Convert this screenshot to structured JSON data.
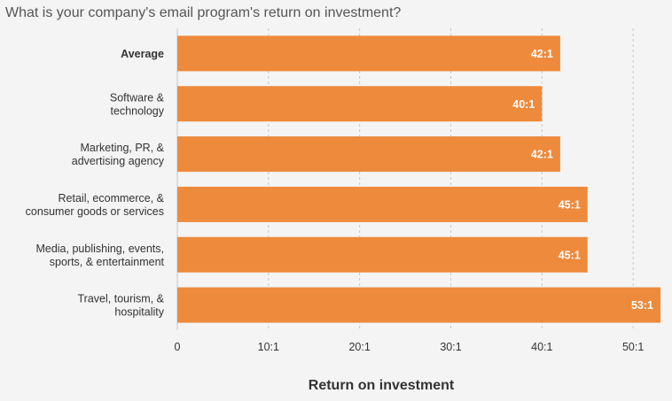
{
  "chart_data": {
    "type": "bar",
    "orientation": "horizontal",
    "title": "What is your company's email program's return on investment?",
    "xlabel": "Return on investment",
    "ylabel": "",
    "categories": [
      [
        "Average"
      ],
      [
        "Software &",
        "technology"
      ],
      [
        "Marketing, PR, &",
        "advertising agency"
      ],
      [
        "Retail, ecommerce, &",
        "consumer goods or services"
      ],
      [
        "Media, publishing, events,",
        "sports, & entertainment"
      ],
      [
        "Travel, tourism, &",
        "hospitality"
      ]
    ],
    "bold_category_index": 0,
    "values": [
      42,
      40,
      42,
      45,
      45,
      53
    ],
    "data_labels": [
      "42:1",
      "40:1",
      "42:1",
      "45:1",
      "45:1",
      "53:1"
    ],
    "xlim": [
      0,
      53
    ],
    "ticks": [
      0,
      10,
      20,
      30,
      40,
      50
    ],
    "tick_labels": [
      "0",
      "10:1",
      "20:1",
      "30:1",
      "40:1",
      "50:1"
    ],
    "grid": "vertical dashed",
    "colors": {
      "bar": "#EE8A3C",
      "grid": "#c8c8c8",
      "background": "#f4f4f4"
    }
  }
}
